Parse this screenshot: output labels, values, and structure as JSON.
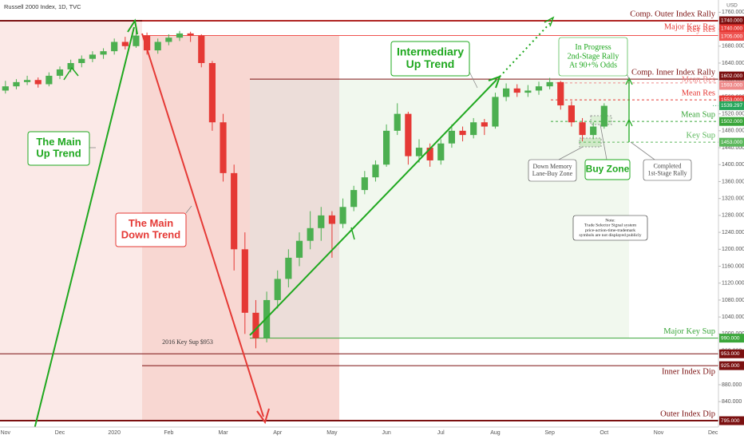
{
  "chart_data": {
    "type": "candlestick",
    "title": "Russell 2000 Index, 1D, TVC",
    "currency": "USD",
    "up_color": "#4caf50",
    "down_color": "#e53935",
    "grid": false,
    "categories": [
      "Nov",
      null,
      null,
      null,
      null,
      "Dec",
      null,
      null,
      null,
      null,
      "2020",
      null,
      null,
      null,
      null,
      "Feb",
      null,
      null,
      null,
      null,
      "Mar",
      null,
      null,
      null,
      null,
      "Apr",
      null,
      null,
      null,
      null,
      "May",
      null,
      null,
      null,
      null,
      "Jun",
      null,
      null,
      null,
      null,
      "Jul",
      null,
      null,
      null,
      null,
      "Aug",
      null,
      null,
      null,
      null,
      "Sep",
      null,
      null,
      null,
      null,
      "Oct",
      null,
      null,
      null,
      null,
      "Nov",
      null,
      null,
      null,
      null,
      "Dec"
    ],
    "open": [
      1575,
      1585,
      1595,
      1600,
      1590,
      1610,
      1625,
      1640,
      1650,
      1660,
      1668,
      1690,
      1680,
      1705,
      1670,
      1690,
      1700,
      1710,
      1705,
      1640,
      1500,
      1380,
      1200,
      1050,
      990,
      1080,
      1130,
      1180,
      1220,
      1250,
      1280,
      1260,
      1300,
      1340,
      1370,
      1400,
      1480,
      1520,
      1420,
      1440,
      1410,
      1450,
      1480,
      1470,
      1500,
      1490,
      1560,
      1580,
      1570,
      1575,
      1585,
      1595,
      1540,
      1500,
      1470,
      1490,
      null,
      null,
      null,
      null,
      null,
      null,
      null,
      null,
      null,
      null
    ],
    "high": [
      1598,
      1602,
      1610,
      1606,
      1618,
      1632,
      1648,
      1658,
      1668,
      1675,
      1698,
      1702,
      1718,
      1712,
      1698,
      1708,
      1716,
      1714,
      1708,
      1645,
      1520,
      1400,
      1240,
      1080,
      1100,
      1150,
      1200,
      1240,
      1290,
      1300,
      1290,
      1320,
      1350,
      1385,
      1410,
      1495,
      1545,
      1525,
      1460,
      1450,
      1460,
      1495,
      1490,
      1510,
      1508,
      1570,
      1592,
      1590,
      1588,
      1596,
      1605,
      1598,
      1550,
      1510,
      1500,
      1545,
      null,
      null,
      null,
      null,
      null,
      null,
      null,
      null,
      null,
      null
    ],
    "low": [
      1568,
      1578,
      1588,
      1582,
      1585,
      1602,
      1618,
      1630,
      1642,
      1650,
      1660,
      1672,
      1676,
      1660,
      1662,
      1682,
      1692,
      1690,
      1630,
      1480,
      1360,
      1150,
      1000,
      966,
      980,
      1060,
      1110,
      1160,
      1200,
      1220,
      1180,
      1250,
      1290,
      1330,
      1360,
      1395,
      1470,
      1400,
      1405,
      1395,
      1400,
      1440,
      1455,
      1462,
      1470,
      1485,
      1550,
      1560,
      1560,
      1565,
      1578,
      1530,
      1490,
      1455,
      1460,
      1485,
      null,
      null,
      null,
      null,
      null,
      null,
      null,
      null,
      null,
      null
    ],
    "close": [
      1585,
      1595,
      1600,
      1590,
      1610,
      1625,
      1640,
      1650,
      1660,
      1668,
      1690,
      1680,
      1705,
      1670,
      1690,
      1700,
      1710,
      1705,
      1640,
      1500,
      1380,
      1200,
      1050,
      990,
      1080,
      1130,
      1180,
      1220,
      1250,
      1280,
      1260,
      1300,
      1340,
      1370,
      1400,
      1480,
      1520,
      1420,
      1440,
      1410,
      1450,
      1480,
      1470,
      1500,
      1490,
      1560,
      1580,
      1570,
      1575,
      1585,
      1595,
      1540,
      1500,
      1470,
      1490,
      1539,
      null,
      null,
      null,
      null,
      null,
      null,
      null,
      null,
      null,
      null
    ],
    "ylim": [
      780,
      1789
    ],
    "yticks": [
      {
        "value": 840,
        "label": "840.000"
      },
      {
        "value": 880,
        "label": "880.000"
      },
      {
        "value": 920,
        "label": "920.000"
      },
      {
        "value": 960,
        "label": "960.000"
      },
      {
        "value": 1000,
        "label": "1000.000"
      },
      {
        "value": 1040,
        "label": "1040.000"
      },
      {
        "value": 1080,
        "label": "1080.000"
      },
      {
        "value": 1120,
        "label": "1120.000"
      },
      {
        "value": 1160,
        "label": "1160.000"
      },
      {
        "value": 1200,
        "label": "1200.000"
      },
      {
        "value": 1240,
        "label": "1240.000"
      },
      {
        "value": 1280,
        "label": "1280.000"
      },
      {
        "value": 1320,
        "label": "1320.000"
      },
      {
        "value": 1360,
        "label": "1360.000"
      },
      {
        "value": 1400,
        "label": "1400.000"
      },
      {
        "value": 1440,
        "label": "1440.000"
      },
      {
        "value": 1480,
        "label": "1480.000"
      },
      {
        "value": 1520,
        "label": "1520.000"
      },
      {
        "value": 1560,
        "label": "1560.000"
      },
      {
        "value": 1600,
        "label": "1600.000"
      },
      {
        "value": 1640,
        "label": "1640.000"
      },
      {
        "value": 1680,
        "label": "1680.000"
      },
      {
        "value": 1720,
        "label": "1720.000"
      },
      {
        "value": 1760,
        "label": "1760.000"
      }
    ],
    "last_price": 1539.297,
    "last_price_color": "#26a65b",
    "levels": [
      {
        "name": "Comp. Outer Index Rally",
        "value": 1740,
        "value_label": "1740.000",
        "color": "#7b1010"
      },
      {
        "name": "Major Key Res",
        "value": 1740,
        "value_label": "1740.000",
        "color": "#e53935"
      },
      {
        "name": "Key Res",
        "value": 1705,
        "value_label": "1705.000",
        "color": "#ef5350"
      },
      {
        "name": "Comp. Inner Index Rally",
        "value": 1602,
        "value_label": "1602.000",
        "color": "#7b1010"
      },
      {
        "name": "Mean Res",
        "value": 1593,
        "value_label": "1593.000",
        "color": "#ef8a8a"
      },
      {
        "name": "Mean Res",
        "value": 1553,
        "value_label": "1553.000",
        "color": "#e53935"
      },
      {
        "name": "Mean Sup",
        "value": 1502,
        "value_label": "1502.000",
        "color": "#3aa63a"
      },
      {
        "name": "Key Sup",
        "value": 1453,
        "value_label": "1453.000",
        "color": "#5cb85c"
      },
      {
        "name": "Major Key Sup",
        "value": 990,
        "value_label": "990.000",
        "color": "#3aa63a"
      },
      {
        "value": 953,
        "value_label": "953.000",
        "color": "#7b1010"
      },
      {
        "name": "Inner Index Dip",
        "value": 925,
        "value_label": "925.000",
        "color": "#7b1010"
      },
      {
        "name": "Outer Index Dip",
        "value": 795,
        "value_label": "795.000",
        "color": "#7b1010"
      }
    ],
    "annotations": [
      {
        "lines": [
          "The Main",
          "Up Trend"
        ],
        "color": "#1fa81f"
      },
      {
        "lines": [
          "The Main",
          "Down Trend"
        ],
        "color": "#e53935"
      },
      {
        "lines": [
          "Intermediary",
          "Up Trend"
        ],
        "color": "#1fa81f"
      },
      {
        "lines": [
          "In Progress",
          "2nd-Stage Rally",
          "At 90+% Odds"
        ],
        "color": "#1fa81f"
      },
      {
        "lines": [
          "Down Memory",
          "Lane-Buy Zone"
        ],
        "color": "#444444"
      },
      {
        "lines": [
          "Buy Zone"
        ],
        "color": "#1fa81f"
      },
      {
        "lines": [
          "Completed",
          "1st-Stage Rally"
        ],
        "color": "#444444"
      },
      {
        "lines": [
          "Note:",
          "Trade Selector Signal system",
          "price-action-time-trademark",
          "symbols are not displayed publicly"
        ],
        "color": "#222222"
      },
      {
        "lines": [
          "2016 Key Sup $953"
        ],
        "color": "#333333"
      }
    ]
  }
}
